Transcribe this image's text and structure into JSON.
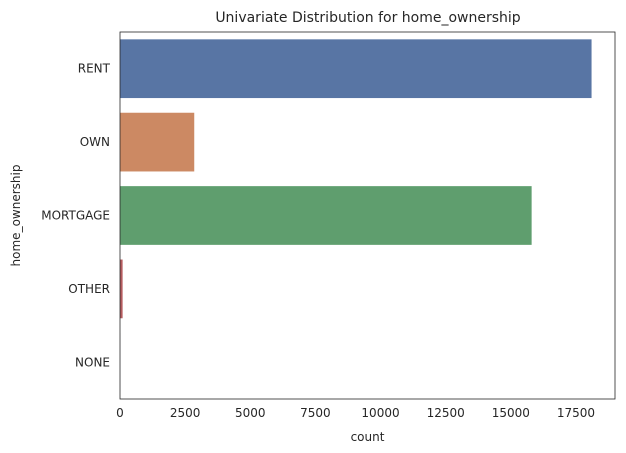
{
  "chart_data": {
    "type": "bar",
    "orientation": "horizontal",
    "title": "Univariate Distribution for home_ownership",
    "xlabel": "count",
    "ylabel": "home_ownership",
    "categories": [
      "RENT",
      "OWN",
      "MORTGAGE",
      "OTHER",
      "NONE"
    ],
    "values": [
      18100,
      2850,
      15800,
      100,
      3
    ],
    "colors": [
      "#5875a4",
      "#cc8963",
      "#5f9e6e",
      "#b55d60",
      "#857aab"
    ],
    "xlim": [
      0,
      19000
    ],
    "xticks": [
      0,
      2500,
      5000,
      7500,
      10000,
      12500,
      15000,
      17500
    ],
    "grid": false,
    "legend": "none"
  }
}
